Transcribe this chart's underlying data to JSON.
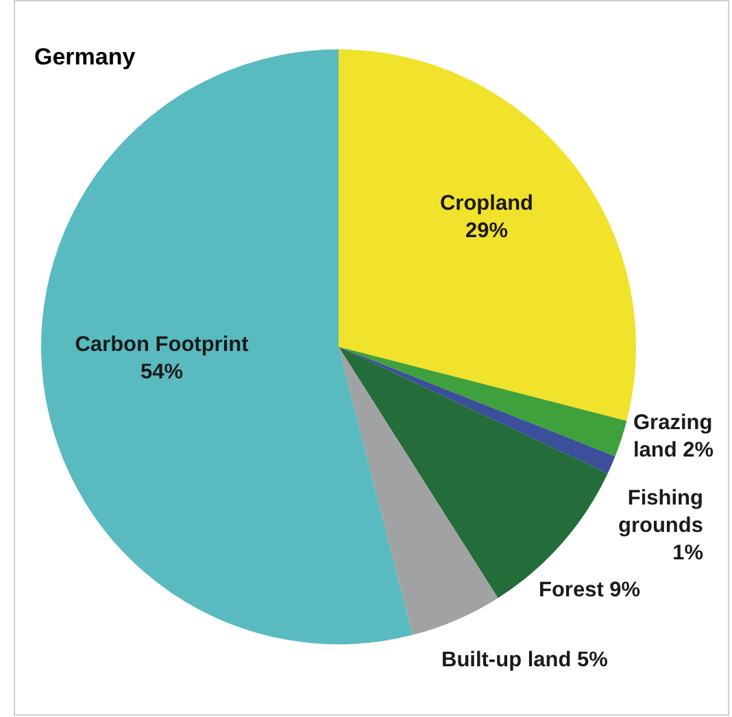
{
  "chart_data": {
    "type": "pie",
    "title": "Germany",
    "categories": [
      "Cropland",
      "Grazing land",
      "Fishing grounds",
      "Forest",
      "Built-up land",
      "Carbon Footprint"
    ],
    "values": [
      29,
      2,
      1,
      9,
      5,
      54
    ],
    "value_labels": [
      "29%",
      "2%",
      "1%",
      "9%",
      "5%",
      "54%"
    ],
    "colors": [
      "#f1e22b",
      "#3fa13b",
      "#3b4f9b",
      "#246c39",
      "#a1a2a3",
      "#59babf"
    ]
  }
}
